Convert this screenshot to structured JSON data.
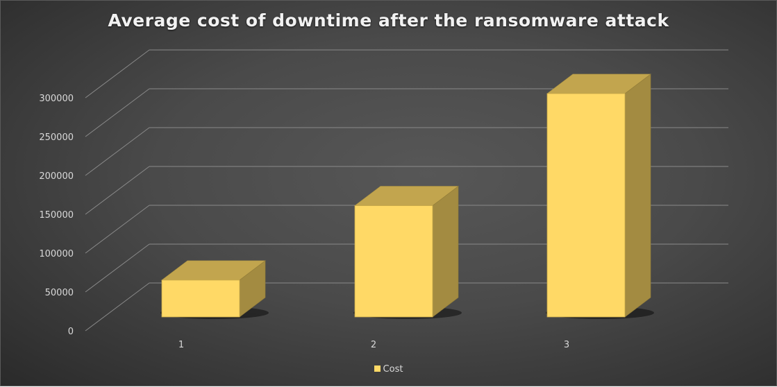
{
  "chart_data": {
    "type": "bar",
    "subtype": "3d-column",
    "title": "Average cost of downtime after the ransomware attack",
    "categories": [
      "1",
      "2",
      "3"
    ],
    "series": [
      {
        "name": "Cost",
        "values": [
          47000,
          142000,
          285000
        ],
        "color": "#FFD966"
      }
    ],
    "xlabel": "",
    "ylabel": "",
    "yticks": [
      "0",
      "50000",
      "100000",
      "150000",
      "200000",
      "250000",
      "300000"
    ],
    "ylim": [
      0,
      350000
    ],
    "grid": true,
    "legend_position": "bottom"
  },
  "colors": {
    "bar_front": "#FFD966",
    "bar_top": "#C2A54E",
    "bar_side": "#A38B41",
    "gridline": "#8a8a8a",
    "text": "#D9D9D9"
  },
  "legend": {
    "label": "Cost"
  }
}
